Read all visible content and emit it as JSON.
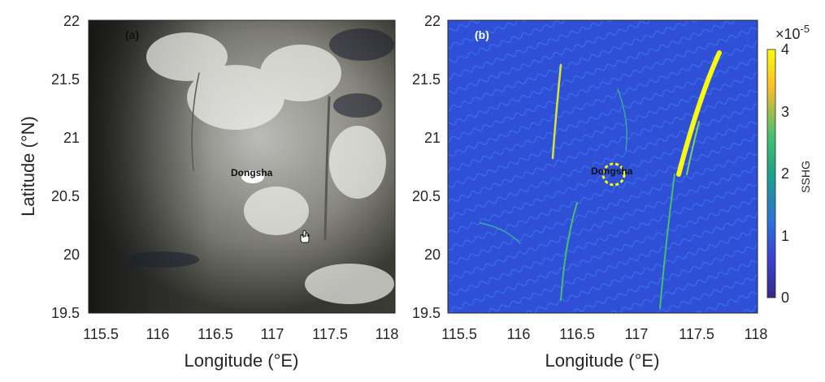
{
  "figure": {
    "y_axis_label": "Latitude (°N)",
    "x_axis_label": "Longitude (°E)",
    "x_ticks": [
      "115.5",
      "116",
      "116.5",
      "117",
      "117.5",
      "118"
    ],
    "y_ticks": [
      "22",
      "21.5",
      "21",
      "20.5",
      "20",
      "19.5"
    ]
  },
  "panel_a": {
    "tag": "(a)",
    "place_label": "Dongsha"
  },
  "panel_b": {
    "tag": "(b)",
    "place_label": "Dongsha"
  },
  "colorbar": {
    "label": "SSHG",
    "exponent_base": "×10",
    "exponent_power": "-5",
    "ticks": [
      "4",
      "3",
      "2",
      "1",
      "0"
    ],
    "colors": [
      "#f9fb0e",
      "#fcbf28",
      "#44bf70",
      "#1fa188",
      "#2d6fd9",
      "#3b3fd0",
      "#352a87"
    ]
  }
}
